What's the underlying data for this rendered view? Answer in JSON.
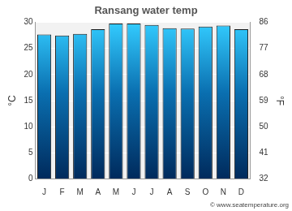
{
  "chart_data": {
    "type": "bar",
    "title": "Ransang water temp",
    "categories": [
      "J",
      "F",
      "M",
      "A",
      "M",
      "J",
      "J",
      "A",
      "S",
      "O",
      "N",
      "D"
    ],
    "values": [
      27.7,
      27.5,
      27.8,
      28.7,
      29.8,
      29.8,
      29.5,
      28.9,
      28.8,
      29.2,
      29.4,
      28.7
    ],
    "color": "#33ccff",
    "ylabel": "°C",
    "ylim": [
      0,
      30
    ],
    "yticks": [
      0,
      5,
      10,
      15,
      20,
      25,
      30
    ],
    "y2label": "°F",
    "y2lim": [
      32,
      86
    ],
    "y2ticks": [
      32,
      41,
      50,
      59,
      68,
      77,
      86
    ],
    "annotations": [
      "© www.seatemperature.org"
    ],
    "grid": true
  }
}
